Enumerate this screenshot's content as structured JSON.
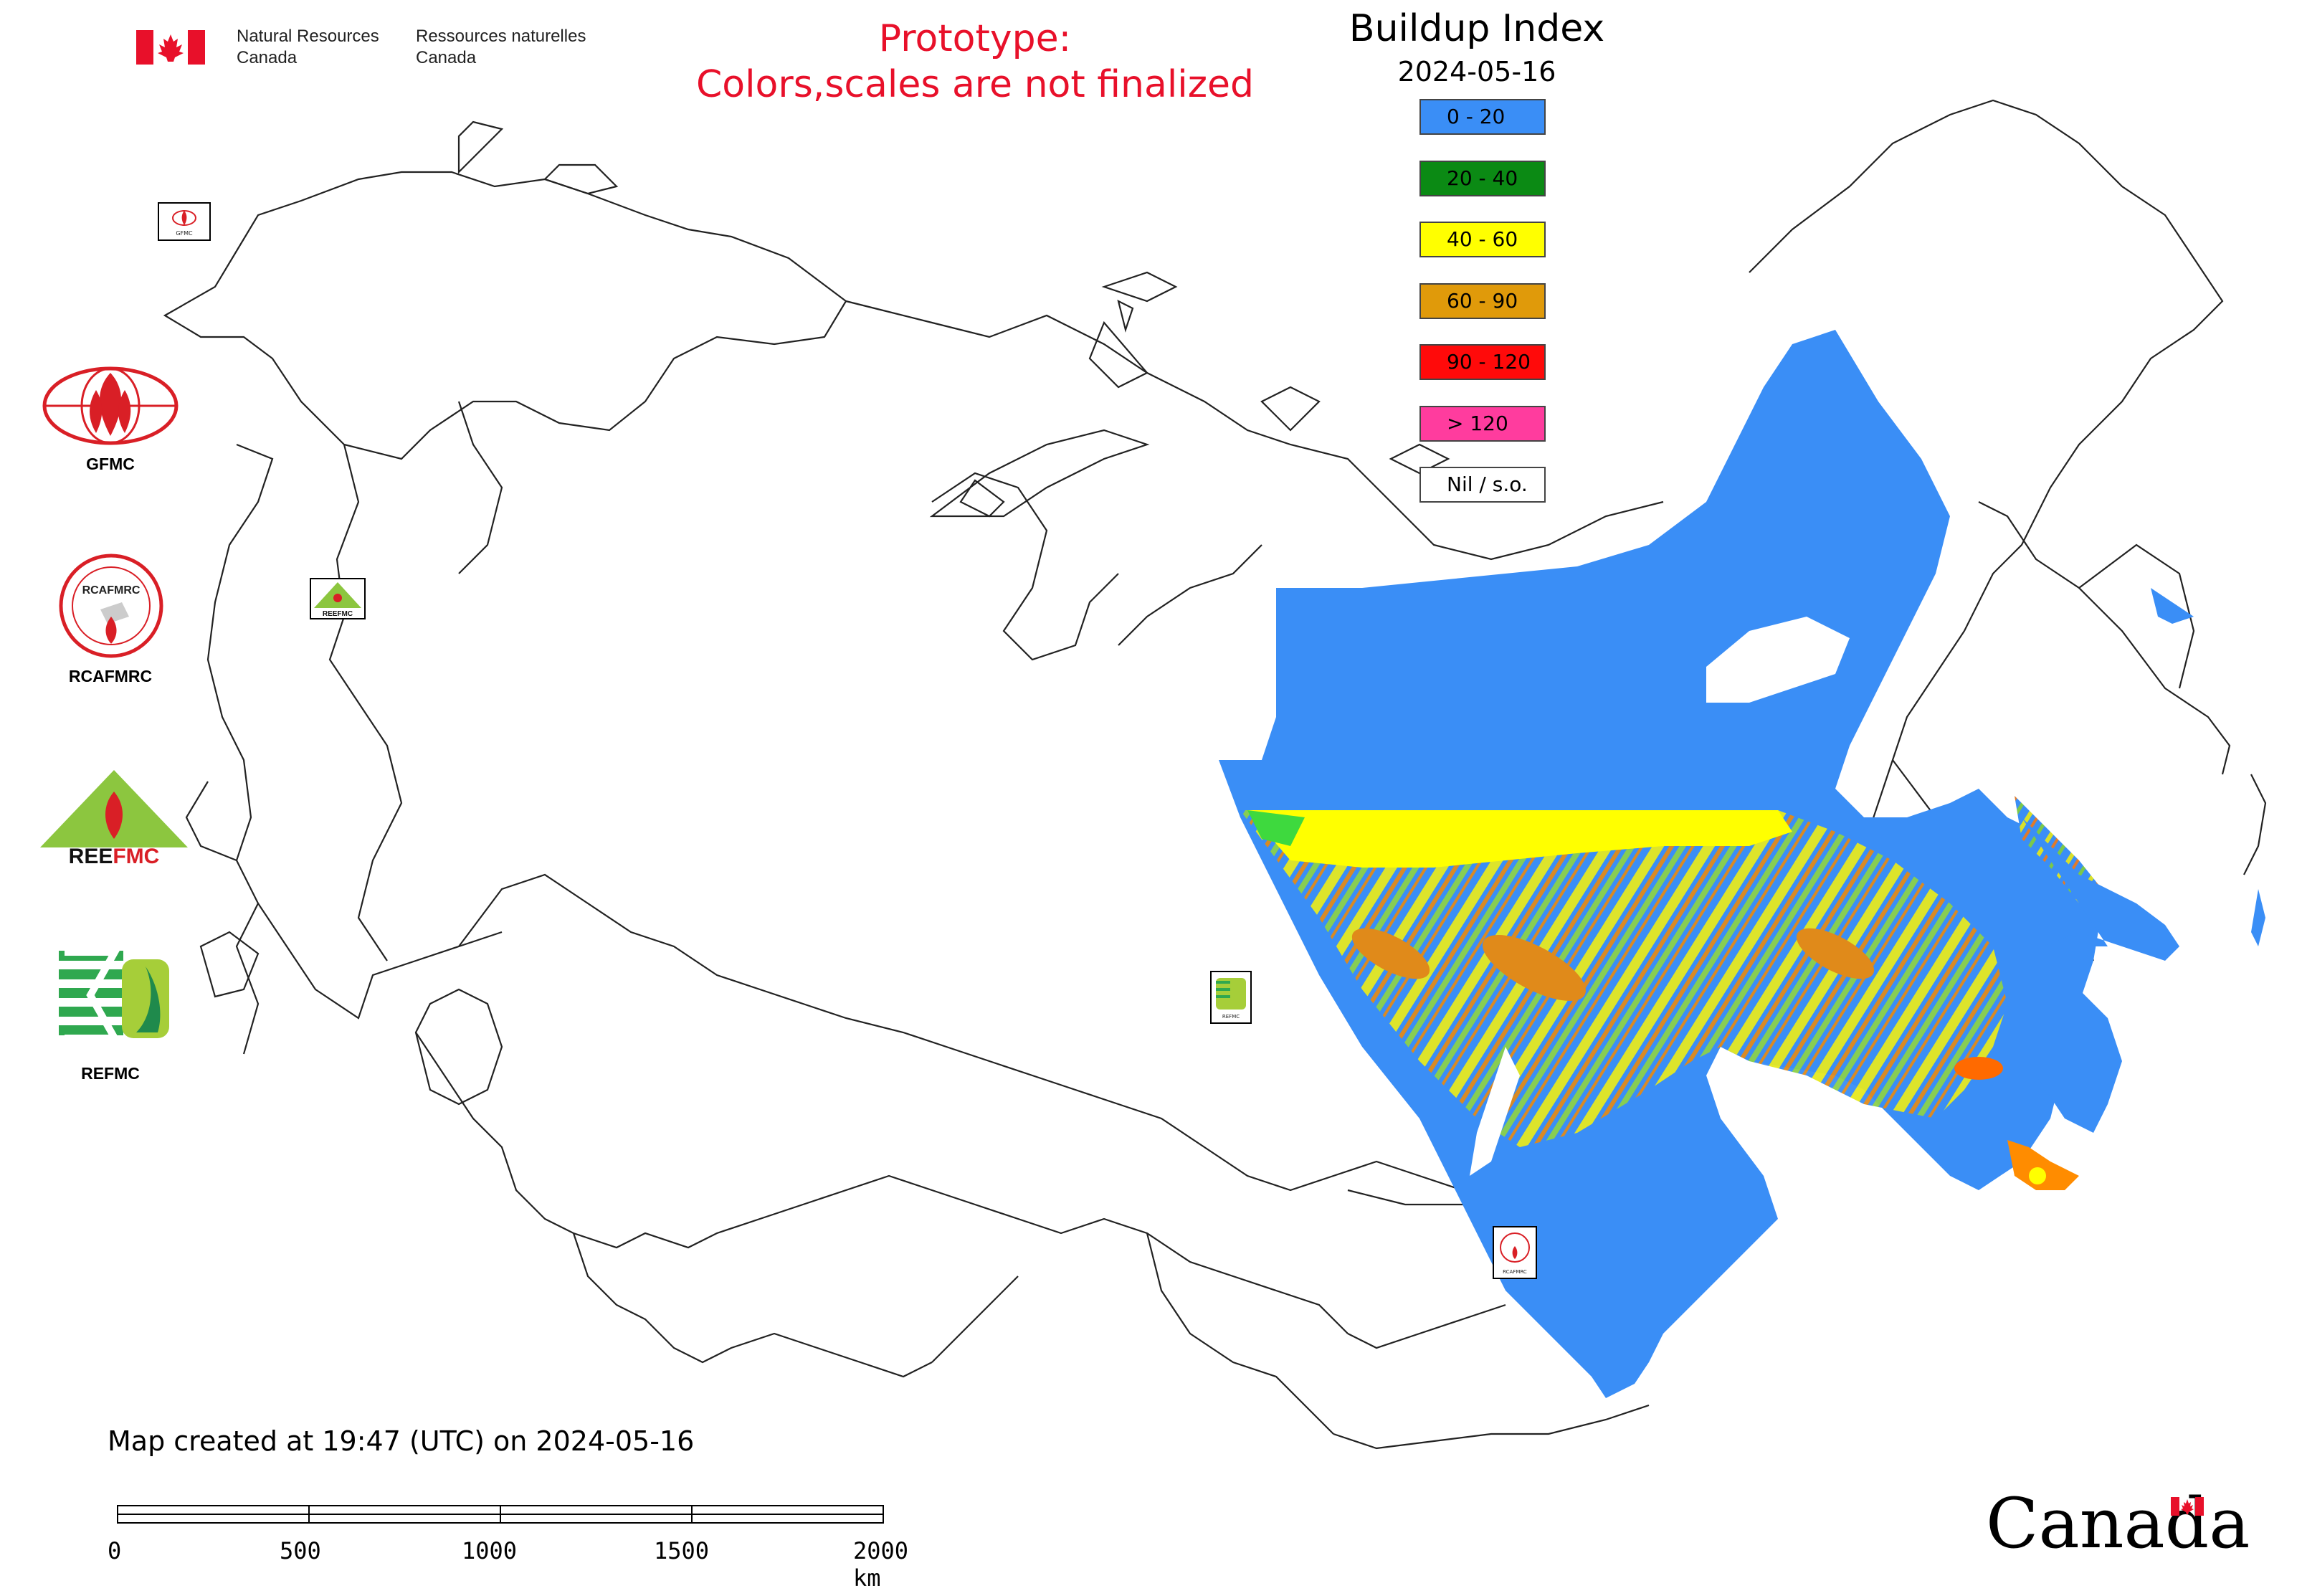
{
  "header": {
    "org_en_line1": "Natural Resources",
    "org_en_line2": "Canada",
    "org_fr_line1": "Ressources naturelles",
    "org_fr_line2": "Canada",
    "prototype_line1": "Prototype:",
    "prototype_line2": "Colors,scales are not finalized"
  },
  "legend": {
    "title": "Buildup Index",
    "date": "2024-05-16",
    "items": [
      {
        "label": "0 - 20",
        "color": "#3a8ef6"
      },
      {
        "label": "20 - 40",
        "color": "#0b8a14"
      },
      {
        "label": "40 - 60",
        "color": "#ffff00"
      },
      {
        "label": "60 - 90",
        "color": "#e09a0a"
      },
      {
        "label": "90 - 120",
        "color": "#ff0a0a"
      },
      {
        "label": "> 120",
        "color": "#ff3c9e"
      },
      {
        "label": "Nil / s.o.",
        "color": "#ffffff"
      }
    ]
  },
  "agencies": [
    {
      "label": "GFMC"
    },
    {
      "label": "RCAFMRC"
    },
    {
      "label": "REEFMC"
    },
    {
      "label": "REFMC"
    }
  ],
  "map_markers": [
    {
      "icon": "gfmc-marker-icon"
    },
    {
      "icon": "reefmc-marker-icon"
    },
    {
      "icon": "refmc-marker-icon"
    },
    {
      "icon": "rcafmrc-marker-icon"
    }
  ],
  "footer": {
    "created": "Map created at 19:47 (UTC) on 2024-05-16",
    "scale_labels": [
      "0",
      "500",
      "1000",
      "1500",
      "2000 km"
    ],
    "wordmark": "Canada"
  },
  "colors": {
    "prototype_text": "#e8102a",
    "map_base": "#3a8ef6",
    "boundary": "#222222"
  }
}
